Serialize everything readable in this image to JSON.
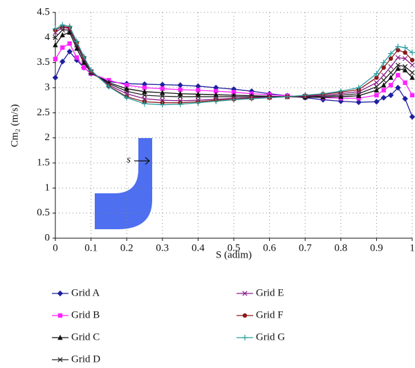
{
  "chart_data": {
    "type": "line",
    "xlabel": "S (adim)",
    "ylabel": "Cm₂ (m/s)",
    "inset_label": "s",
    "x": [
      0,
      0.02,
      0.04,
      0.06,
      0.08,
      0.1,
      0.15,
      0.2,
      0.25,
      0.3,
      0.35,
      0.4,
      0.45,
      0.5,
      0.55,
      0.6,
      0.65,
      0.7,
      0.75,
      0.8,
      0.85,
      0.9,
      0.92,
      0.94,
      0.96,
      0.98,
      1
    ],
    "xlim": [
      0,
      1
    ],
    "xticks": [
      0,
      0.1,
      0.2,
      0.3,
      0.4,
      0.5,
      0.6,
      0.7,
      0.8,
      0.9,
      1
    ],
    "ylim": [
      0,
      4.5
    ],
    "yticks": [
      0,
      0.5,
      1,
      1.5,
      2,
      2.5,
      3,
      3.5,
      4,
      4.5
    ],
    "grid": true,
    "series": [
      {
        "name": "Grid A",
        "color": "#1f1f9e",
        "marker": "diamond",
        "values": [
          3.2,
          3.52,
          3.72,
          3.55,
          3.4,
          3.28,
          3.12,
          3.08,
          3.07,
          3.06,
          3.05,
          3.03,
          3.0,
          2.97,
          2.93,
          2.88,
          2.84,
          2.8,
          2.76,
          2.73,
          2.71,
          2.72,
          2.8,
          2.85,
          3.0,
          2.78,
          2.42
        ]
      },
      {
        "name": "Grid B",
        "color": "#ff22ff",
        "marker": "square",
        "values": [
          3.57,
          3.8,
          3.88,
          3.6,
          3.4,
          3.28,
          3.15,
          3.05,
          3.0,
          2.98,
          2.96,
          2.95,
          2.93,
          2.91,
          2.88,
          2.86,
          2.84,
          2.82,
          2.8,
          2.79,
          2.79,
          2.85,
          2.95,
          3.05,
          3.25,
          3.1,
          2.85
        ]
      },
      {
        "name": "Grid C",
        "color": "#111111",
        "marker": "triangle",
        "values": [
          3.85,
          4.05,
          4.1,
          3.78,
          3.5,
          3.3,
          3.1,
          2.98,
          2.92,
          2.9,
          2.88,
          2.87,
          2.86,
          2.85,
          2.84,
          2.83,
          2.82,
          2.81,
          2.81,
          2.82,
          2.84,
          2.95,
          3.05,
          3.2,
          3.38,
          3.35,
          3.2
        ]
      },
      {
        "name": "Grid D",
        "color": "#222222",
        "marker": "x",
        "values": [
          4.0,
          4.15,
          4.15,
          3.85,
          3.55,
          3.3,
          3.08,
          2.93,
          2.85,
          2.83,
          2.82,
          2.82,
          2.82,
          2.82,
          2.82,
          2.82,
          2.82,
          2.82,
          2.83,
          2.85,
          2.88,
          3.02,
          3.15,
          3.3,
          3.45,
          3.42,
          3.3
        ]
      },
      {
        "name": "Grid E",
        "color": "#8b1a8b",
        "marker": "x",
        "values": [
          4.1,
          4.2,
          4.18,
          3.88,
          3.58,
          3.32,
          3.05,
          2.88,
          2.78,
          2.75,
          2.74,
          2.75,
          2.77,
          2.79,
          2.8,
          2.81,
          2.82,
          2.83,
          2.85,
          2.88,
          2.92,
          3.1,
          3.25,
          3.42,
          3.6,
          3.58,
          3.45
        ]
      },
      {
        "name": "Grid F",
        "color": "#8b1a1a",
        "marker": "circle",
        "values": [
          4.15,
          4.22,
          4.2,
          3.9,
          3.6,
          3.33,
          3.03,
          2.82,
          2.72,
          2.7,
          2.7,
          2.72,
          2.75,
          2.77,
          2.79,
          2.8,
          2.82,
          2.84,
          2.87,
          2.91,
          2.96,
          3.2,
          3.4,
          3.58,
          3.75,
          3.7,
          3.55
        ]
      },
      {
        "name": "Grid G",
        "color": "#2a9d9d",
        "marker": "plus",
        "values": [
          4.17,
          4.25,
          4.22,
          3.92,
          3.62,
          3.35,
          3.02,
          2.8,
          2.68,
          2.66,
          2.67,
          2.7,
          2.73,
          2.76,
          2.78,
          2.8,
          2.82,
          2.85,
          2.88,
          2.93,
          3.0,
          3.28,
          3.5,
          3.68,
          3.82,
          3.8,
          3.7
        ]
      }
    ]
  }
}
